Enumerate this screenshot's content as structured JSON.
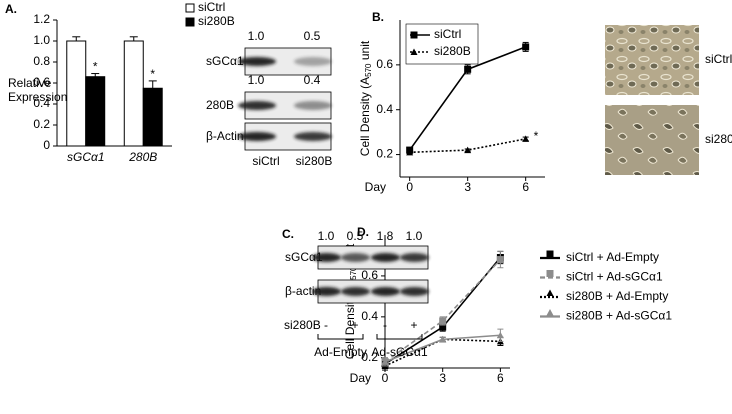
{
  "chart_data": [
    {
      "type": "bar",
      "label": "A.",
      "ylabel": [
        "Relative",
        "Expression"
      ],
      "categories": [
        "sGCα1",
        "280B"
      ],
      "series": [
        {
          "name": "siCtrl",
          "color": "#ffffff",
          "values": [
            1.0,
            1.0
          ],
          "errors": [
            0.04,
            0.04
          ]
        },
        {
          "name": "si280B",
          "color": "#000000",
          "values": [
            0.66,
            0.55
          ],
          "errors": [
            0.03,
            0.07
          ]
        }
      ],
      "annotations": [
        "*",
        "*"
      ],
      "ylim": [
        0,
        1.2
      ],
      "yticks": [
        0,
        0.2,
        0.4,
        0.6,
        0.8,
        {
          "value": 1,
          "label": "1.0"
        },
        1.2
      ],
      "legend": "above"
    },
    {
      "type": "line",
      "label": "B.",
      "ylabel": {
        "text": "Cell Density (A",
        "sub": "570",
        "tail": " unit"
      },
      "xlabel": "Day",
      "x": [
        0,
        3,
        6
      ],
      "series": [
        {
          "name": "siCtrl",
          "color": "#000000",
          "dash": "solid",
          "marker": "square",
          "values": [
            0.22,
            0.58,
            0.68
          ],
          "errors": [
            0.01,
            0.02,
            0.02
          ]
        },
        {
          "name": "si280B",
          "color": "#000000",
          "dash": "dotted",
          "marker": "triangle",
          "values": [
            0.21,
            0.22,
            0.27
          ],
          "errors": [
            0.005,
            0.005,
            0.008
          ]
        }
      ],
      "annotation": "*",
      "xlim": [
        -0.5,
        7
      ],
      "xticks": [
        0,
        3,
        6
      ],
      "ylim": [
        0.1,
        0.8
      ],
      "yticks": [
        0.2,
        0.4,
        0.6
      ],
      "legend": "upper-left"
    },
    {
      "type": "line",
      "label": "D.",
      "ylabel": {
        "text": "Cell Density (A",
        "sub": "570",
        "tail": " unit"
      },
      "xlabel": "Day",
      "x": [
        0,
        3,
        6
      ],
      "series": [
        {
          "name": "siCtrl + Ad-Empty",
          "color": "#000000",
          "dash": "solid",
          "marker": "square",
          "values": [
            0.17,
            0.35,
            0.69
          ],
          "errors": [
            0.02,
            0.02,
            0.03
          ]
        },
        {
          "name": "siCtrl + Ad-sGCα1",
          "color": "#8c8c8c",
          "dash": "dashed",
          "marker": "square",
          "values": [
            0.18,
            0.38,
            0.68
          ],
          "errors": [
            0.02,
            0.02,
            0.04
          ]
        },
        {
          "name": "si280B + Ad-Empty",
          "color": "#000000",
          "dash": "dotted",
          "marker": "triangle",
          "values": [
            0.16,
            0.29,
            0.28
          ],
          "errors": [
            0.02,
            0.01,
            0.02
          ]
        },
        {
          "name": "si280B + Ad-sGCα1",
          "color": "#8c8c8c",
          "dash": "solid",
          "marker": "triangle",
          "values": [
            0.18,
            0.29,
            0.31
          ],
          "errors": [
            0.02,
            0.01,
            0.03
          ]
        }
      ],
      "xlim": [
        0,
        6.5
      ],
      "xticks": [
        0,
        3,
        6
      ],
      "ylim": [
        0.15,
        0.8
      ],
      "yticks": [
        0.2,
        0.4,
        0.6
      ],
      "legend": "right"
    }
  ],
  "panel_a_blot": {
    "rows": [
      {
        "label": "sGCα1",
        "ratios": [
          "1.0",
          "0.5"
        ]
      },
      {
        "label": "280B",
        "ratios": [
          "1.0",
          "0.4"
        ]
      },
      {
        "label": "β-Actin"
      }
    ],
    "lanes": [
      "siCtrl",
      "si280B"
    ]
  },
  "photos": {
    "labels": [
      "siCtrl",
      "si280B"
    ]
  },
  "panel_c_blot": {
    "label": "C.",
    "ratios": [
      "1.0",
      "0.5",
      "1.8",
      "1.0"
    ],
    "rows": [
      "sGCα1",
      "β-actin"
    ],
    "treatment": "si280B",
    "signs": [
      "-",
      "+",
      "-",
      "+"
    ],
    "groups": [
      "Ad-Empty",
      "Ad-sGCα1"
    ]
  }
}
